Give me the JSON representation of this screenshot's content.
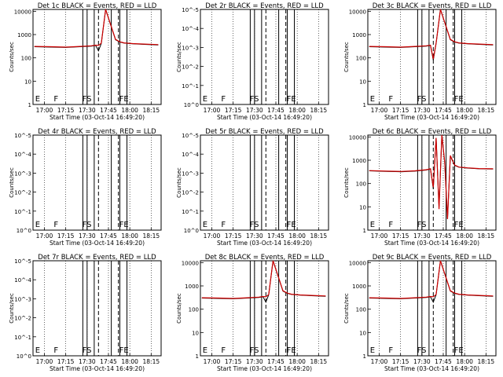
{
  "figure": {
    "xlabel": "Start Time (03-Oct-14 16:49:20)",
    "ylabel": "Counts/sec",
    "colors": {
      "events": "#000000",
      "lld": "#cc0000",
      "axes": "#000000"
    }
  },
  "chart_data": [
    {
      "type": "line",
      "title": "Det 1c BLACK = Events, RED = LLD",
      "xlabel": "Start Time (03-Oct-14 16:49:20)",
      "ylabel": "Counts/sec",
      "x_ticks": [
        "17:00",
        "17:15",
        "17:30",
        "17:45",
        "18:00",
        "18:15"
      ],
      "y_scale": "log",
      "y_ticks": [
        "1",
        "10",
        "100",
        "1000",
        "10000"
      ],
      "ylim": [
        1,
        12000
      ],
      "has_data": true,
      "variant": "a",
      "markers": [
        "E",
        "F",
        "FS",
        "FE"
      ],
      "series": [
        {
          "name": "Events",
          "x": [
            "16:53",
            "17:05",
            "17:15",
            "17:25",
            "17:33",
            "17:36",
            "17:38",
            "17:40",
            "17:43",
            "17:50",
            "17:53",
            "17:56",
            "18:02",
            "18:10",
            "18:20"
          ],
          "y": [
            300,
            290,
            280,
            300,
            320,
            340,
            200,
            420,
            12000,
            600,
            480,
            430,
            400,
            380,
            360
          ]
        },
        {
          "name": "LLD",
          "x": [
            "16:53",
            "17:05",
            "17:15",
            "17:25",
            "17:33",
            "17:36",
            "17:38",
            "17:40",
            "17:43",
            "17:50",
            "17:53",
            "17:56",
            "18:02",
            "18:10",
            "18:20"
          ],
          "y": [
            310,
            300,
            290,
            310,
            330,
            350,
            340,
            430,
            12000,
            620,
            490,
            440,
            410,
            390,
            370
          ]
        }
      ]
    },
    {
      "type": "line",
      "title": "Det 2r BLACK = Events, RED = LLD",
      "xlabel": "Start Time (03-Oct-14 16:49:20)",
      "ylabel": "Counts/sec",
      "x_ticks": [
        "17:00",
        "17:15",
        "17:30",
        "17:45",
        "18:00",
        "18:15"
      ],
      "y_scale": "log",
      "y_ticks": [
        "10^0",
        "10^-1",
        "10^-2",
        "10^-3",
        "10^-4",
        "10^-5"
      ],
      "has_data": false,
      "variant": "blank",
      "markers": [
        "E",
        "F",
        "FS",
        "FE"
      ],
      "series": []
    },
    {
      "type": "line",
      "title": "Det 3c BLACK = Events, RED = LLD",
      "xlabel": "Start Time (03-Oct-14 16:49:20)",
      "ylabel": "Counts/sec",
      "x_ticks": [
        "17:00",
        "17:15",
        "17:30",
        "17:45",
        "18:00",
        "18:15"
      ],
      "y_scale": "log",
      "y_ticks": [
        "1",
        "10",
        "100",
        "1000",
        "10000"
      ],
      "ylim": [
        1,
        12000
      ],
      "has_data": true,
      "variant": "b",
      "markers": [
        "E",
        "F",
        "FS",
        "FE"
      ],
      "series": [
        {
          "name": "Events",
          "x": [
            "16:53",
            "17:05",
            "17:15",
            "17:25",
            "17:33",
            "17:36",
            "17:38",
            "17:40",
            "17:43",
            "17:50",
            "17:53",
            "17:56",
            "18:02",
            "18:10",
            "18:20"
          ],
          "y": [
            300,
            290,
            280,
            300,
            320,
            340,
            80,
            420,
            12000,
            600,
            480,
            430,
            400,
            380,
            360
          ]
        },
        {
          "name": "LLD",
          "x": [
            "16:53",
            "17:05",
            "17:15",
            "17:25",
            "17:33",
            "17:36",
            "17:38",
            "17:40",
            "17:43",
            "17:50",
            "17:53",
            "17:56",
            "18:02",
            "18:10",
            "18:20"
          ],
          "y": [
            310,
            300,
            290,
            310,
            330,
            350,
            90,
            430,
            12000,
            620,
            490,
            440,
            410,
            390,
            370
          ]
        }
      ]
    },
    {
      "type": "line",
      "title": "Det 4r BLACK = Events, RED = LLD",
      "xlabel": "Start Time (03-Oct-14 16:49:20)",
      "ylabel": "Counts/sec",
      "x_ticks": [
        "17:00",
        "17:15",
        "17:30",
        "17:45",
        "18:00",
        "18:15"
      ],
      "y_scale": "log",
      "y_ticks": [
        "10^0",
        "10^-1",
        "10^-2",
        "10^-3",
        "10^-4",
        "10^-5"
      ],
      "has_data": false,
      "variant": "blank",
      "markers": [
        "E",
        "F",
        "FS",
        "FE"
      ],
      "series": []
    },
    {
      "type": "line",
      "title": "Det 5r BLACK = Events, RED = LLD",
      "xlabel": "Start Time (03-Oct-14 16:49:20)",
      "ylabel": "Counts/sec",
      "x_ticks": [
        "17:00",
        "17:15",
        "17:30",
        "17:45",
        "18:00",
        "18:15"
      ],
      "y_scale": "log",
      "y_ticks": [
        "10^0",
        "10^-1",
        "10^-2",
        "10^-3",
        "10^-4",
        "10^-5"
      ],
      "has_data": false,
      "variant": "blank",
      "markers": [
        "E",
        "F",
        "FS",
        "FE"
      ],
      "series": []
    },
    {
      "type": "line",
      "title": "Det 6c BLACK = Events, RED = LLD",
      "xlabel": "Start Time (03-Oct-14 16:49:20)",
      "ylabel": "Counts/sec",
      "x_ticks": [
        "17:00",
        "17:15",
        "17:30",
        "17:45",
        "18:00",
        "18:15"
      ],
      "y_scale": "log",
      "y_ticks": [
        "1",
        "10",
        "100",
        "1000",
        "10000"
      ],
      "ylim": [
        1,
        12000
      ],
      "has_data": true,
      "variant": "c",
      "markers": [
        "E",
        "F",
        "FS",
        "FE"
      ],
      "series": [
        {
          "name": "Events",
          "x": [
            "16:53",
            "17:05",
            "17:15",
            "17:25",
            "17:33",
            "17:36",
            "17:38",
            "17:40",
            "17:42",
            "17:44",
            "17:46",
            "17:48",
            "17:50",
            "17:53",
            "17:56",
            "18:02",
            "18:10",
            "18:20"
          ],
          "y": [
            350,
            330,
            320,
            340,
            380,
            420,
            60,
            9000,
            10,
            12000,
            800,
            3,
            1500,
            600,
            500,
            460,
            430,
            420
          ]
        },
        {
          "name": "LLD",
          "x": [
            "16:53",
            "17:05",
            "17:15",
            "17:25",
            "17:33",
            "17:36",
            "17:38",
            "17:40",
            "17:42",
            "17:44",
            "17:46",
            "17:48",
            "17:50",
            "17:53",
            "17:56",
            "18:02",
            "18:10",
            "18:20"
          ],
          "y": [
            360,
            340,
            330,
            350,
            390,
            430,
            70,
            9000,
            8,
            12000,
            900,
            3,
            1600,
            620,
            510,
            470,
            440,
            430
          ]
        }
      ]
    },
    {
      "type": "line",
      "title": "Det 7r BLACK = Events, RED = LLD",
      "xlabel": "Start Time (03-Oct-14 16:49:20)",
      "ylabel": "Counts/sec",
      "x_ticks": [
        "17:00",
        "17:15",
        "17:30",
        "17:45",
        "18:00",
        "18:15"
      ],
      "y_scale": "log",
      "y_ticks": [
        "10^0",
        "10^-1",
        "10^-2",
        "10^-3",
        "10^-4",
        "10^-5"
      ],
      "has_data": false,
      "variant": "blank",
      "markers": [
        "E",
        "F",
        "FS",
        "FE"
      ],
      "series": []
    },
    {
      "type": "line",
      "title": "Det 8c BLACK = Events, RED = LLD",
      "xlabel": "Start Time (03-Oct-14 16:49:20)",
      "ylabel": "Counts/sec",
      "x_ticks": [
        "17:00",
        "17:15",
        "17:30",
        "17:45",
        "18:00",
        "18:15"
      ],
      "y_scale": "log",
      "y_ticks": [
        "1",
        "10",
        "100",
        "1000",
        "10000"
      ],
      "ylim": [
        1,
        12000
      ],
      "has_data": true,
      "variant": "b",
      "markers": [
        "E",
        "F",
        "FS",
        "FE"
      ],
      "series": [
        {
          "name": "Events",
          "x": [
            "16:53",
            "17:05",
            "17:15",
            "17:25",
            "17:33",
            "17:36",
            "17:38",
            "17:40",
            "17:43",
            "17:50",
            "17:53",
            "17:56",
            "18:02",
            "18:10",
            "18:20"
          ],
          "y": [
            300,
            290,
            280,
            300,
            320,
            340,
            200,
            420,
            12000,
            600,
            480,
            430,
            400,
            380,
            360
          ]
        },
        {
          "name": "LLD",
          "x": [
            "16:53",
            "17:05",
            "17:15",
            "17:25",
            "17:33",
            "17:36",
            "17:38",
            "17:40",
            "17:43",
            "17:50",
            "17:53",
            "17:56",
            "18:02",
            "18:10",
            "18:20"
          ],
          "y": [
            310,
            300,
            290,
            310,
            330,
            350,
            340,
            430,
            12000,
            620,
            490,
            440,
            410,
            390,
            370
          ]
        }
      ]
    },
    {
      "type": "line",
      "title": "Det 9c BLACK = Events, RED = LLD",
      "xlabel": "Start Time (03-Oct-14 16:49:20)",
      "ylabel": "Counts/sec",
      "x_ticks": [
        "17:00",
        "17:15",
        "17:30",
        "17:45",
        "18:00",
        "18:15"
      ],
      "y_scale": "log",
      "y_ticks": [
        "1",
        "10",
        "100",
        "1000",
        "10000"
      ],
      "ylim": [
        1,
        12000
      ],
      "has_data": true,
      "variant": "b",
      "markers": [
        "E",
        "F",
        "FS",
        "FE"
      ],
      "series": [
        {
          "name": "Events",
          "x": [
            "16:53",
            "17:05",
            "17:15",
            "17:25",
            "17:33",
            "17:36",
            "17:38",
            "17:40",
            "17:43",
            "17:50",
            "17:53",
            "17:56",
            "18:02",
            "18:10",
            "18:20"
          ],
          "y": [
            300,
            290,
            280,
            300,
            320,
            340,
            200,
            420,
            12000,
            600,
            480,
            430,
            400,
            380,
            360
          ]
        },
        {
          "name": "LLD",
          "x": [
            "16:53",
            "17:05",
            "17:15",
            "17:25",
            "17:33",
            "17:36",
            "17:38",
            "17:40",
            "17:43",
            "17:50",
            "17:53",
            "17:56",
            "18:02",
            "18:10",
            "18:20"
          ],
          "y": [
            310,
            300,
            290,
            310,
            330,
            350,
            340,
            430,
            12000,
            620,
            490,
            440,
            410,
            390,
            370
          ]
        }
      ]
    }
  ]
}
